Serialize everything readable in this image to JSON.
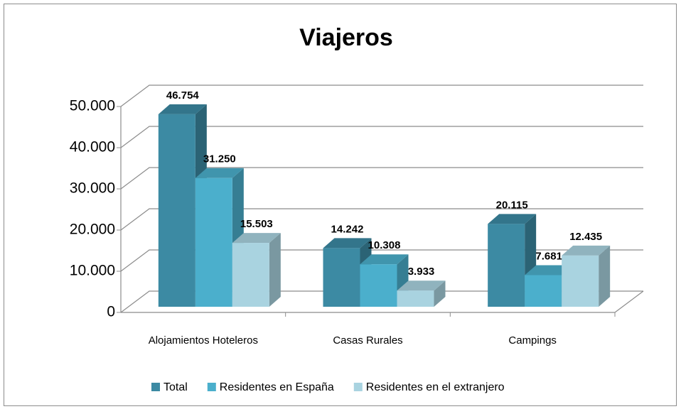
{
  "chart_data": {
    "type": "bar3d",
    "title": "Viajeros",
    "categories": [
      "Alojamientos Hoteleros",
      "Casas Rurales",
      "Campings"
    ],
    "series": [
      {
        "name": "Total",
        "color": "#3c8aa3",
        "values": [
          46754,
          14242,
          20115
        ],
        "value_labels": [
          "46.754",
          "14.242",
          "20.115"
        ]
      },
      {
        "name": "Residentes en España",
        "color": "#4bafcc",
        "values": [
          31250,
          10308,
          7681
        ],
        "value_labels": [
          "31.250",
          "10.308",
          "7.681"
        ]
      },
      {
        "name": "Residentes en el extranjero",
        "color": "#a9d3e0",
        "values": [
          15503,
          3933,
          12435
        ],
        "value_labels": [
          "15.503",
          "3.933",
          "12.435"
        ]
      }
    ],
    "ylim": [
      0,
      50000
    ],
    "yticks": [
      0,
      {
        "value": 10000,
        "label": "10.000"
      },
      {
        "value": 20000,
        "label": "20.000"
      },
      {
        "value": 30000,
        "label": "30.000"
      },
      {
        "value": 40000,
        "label": "40.000"
      },
      {
        "value": 50000,
        "label": "50.000"
      }
    ],
    "grid": true,
    "legend": "bottom"
  }
}
